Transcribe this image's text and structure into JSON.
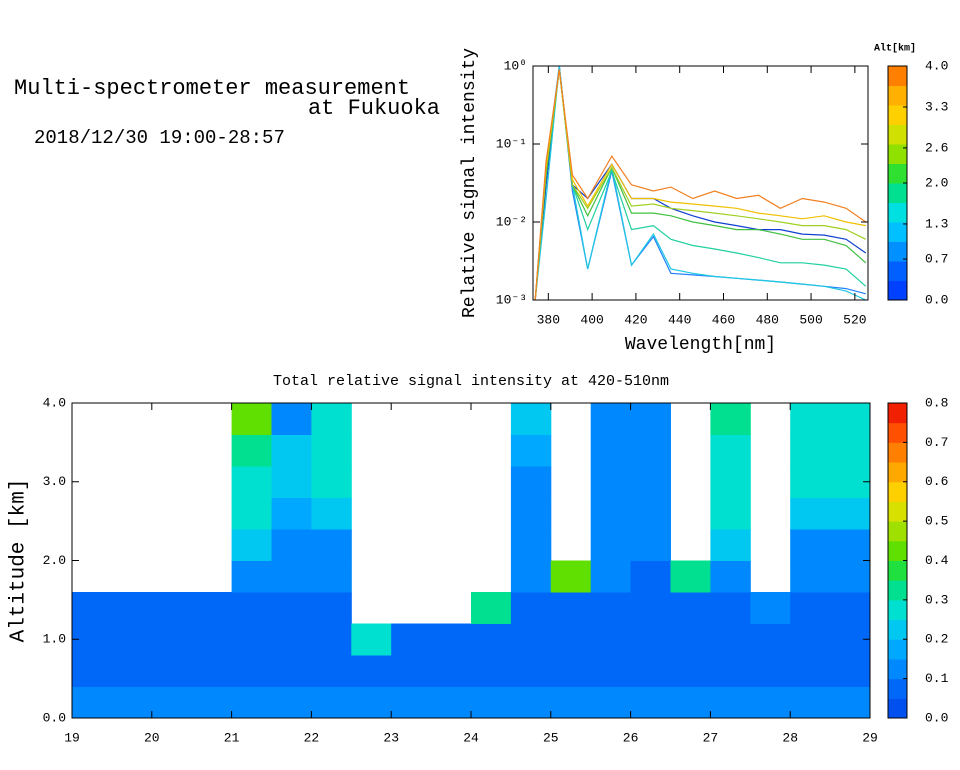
{
  "header": {
    "title": [
      "Multi-spectrometer measurement",
      "at Fukuoka"
    ],
    "datetime": "2018/12/30 19:00-28:57"
  },
  "chart_data": [
    {
      "type": "line",
      "ylabel": "Relative signal intensity",
      "xlabel": "Wavelength[nm]",
      "ylog": true,
      "x": [
        374,
        379,
        385,
        391,
        398,
        409,
        418,
        428,
        436,
        446,
        456,
        466,
        476,
        486,
        496,
        506,
        516,
        525
      ],
      "xlim": [
        373,
        526
      ],
      "xticks": [
        380,
        400,
        420,
        440,
        460,
        480,
        500,
        520
      ],
      "ylim": [
        0.001,
        1
      ],
      "yticks": [
        {
          "value": 0.001,
          "label": "10⁻³"
        },
        {
          "value": 0.01,
          "label": "10⁻²"
        },
        {
          "value": 0.1,
          "label": "10⁻¹"
        },
        {
          "value": 1,
          "label": "10⁰"
        }
      ],
      "series": [
        {
          "color": "#1040d0",
          "values": [
            0.001,
            0.03,
            1,
            0.03,
            0.02,
            0.055,
            0.02,
            0.02,
            0.015,
            0.012,
            0.01,
            0.009,
            0.008,
            0.008,
            0.007,
            0.0068,
            0.006,
            0.004
          ]
        },
        {
          "color": "#2080ff",
          "values": [
            0.001,
            0.05,
            1,
            0.025,
            0.0025,
            0.045,
            0.0028,
            0.0065,
            0.0022,
            0.0021,
            0.002,
            0.0019,
            0.0018,
            0.0017,
            0.0016,
            0.0015,
            0.0014,
            0.0012
          ]
        },
        {
          "color": "#20c8e0",
          "values": [
            0.001,
            0.02,
            1,
            0.03,
            0.0025,
            0.05,
            0.0028,
            0.007,
            0.0025,
            0.0022,
            0.002,
            0.0019,
            0.0018,
            0.0017,
            0.0016,
            0.0015,
            0.0013,
            0.001
          ]
        },
        {
          "color": "#20d0a0",
          "values": [
            0.001,
            0.04,
            0.9,
            0.03,
            0.008,
            0.045,
            0.008,
            0.009,
            0.006,
            0.005,
            0.0045,
            0.004,
            0.0035,
            0.003,
            0.003,
            0.0028,
            0.0025,
            0.0015
          ]
        },
        {
          "color": "#40c040",
          "values": [
            0.001,
            0.04,
            0.9,
            0.03,
            0.012,
            0.05,
            0.013,
            0.013,
            0.012,
            0.01,
            0.009,
            0.008,
            0.008,
            0.007,
            0.006,
            0.006,
            0.005,
            0.003
          ]
        },
        {
          "color": "#a0d020",
          "values": [
            0.001,
            0.05,
            0.9,
            0.03,
            0.015,
            0.05,
            0.016,
            0.017,
            0.015,
            0.014,
            0.013,
            0.012,
            0.011,
            0.01,
            0.009,
            0.009,
            0.008,
            0.006
          ]
        },
        {
          "color": "#f0c000",
          "values": [
            0.001,
            0.05,
            0.9,
            0.035,
            0.016,
            0.055,
            0.02,
            0.02,
            0.018,
            0.017,
            0.016,
            0.015,
            0.013,
            0.012,
            0.011,
            0.012,
            0.01,
            0.009
          ]
        },
        {
          "color": "#f08020",
          "values": [
            0.001,
            0.06,
            0.9,
            0.04,
            0.02,
            0.07,
            0.03,
            0.025,
            0.028,
            0.02,
            0.025,
            0.02,
            0.022,
            0.015,
            0.02,
            0.018,
            0.015,
            0.01
          ]
        }
      ],
      "colorbar": {
        "title": "Alt[km]",
        "lim": [
          0,
          4
        ],
        "ticks": [
          {
            "value": 0,
            "label": "0.0"
          },
          0.7,
          1.3,
          {
            "value": 2,
            "label": "2.0"
          },
          2.6,
          3.3,
          {
            "value": 4,
            "label": "4.0"
          }
        ],
        "colors": [
          "#0040ff",
          "#0060ff",
          "#0090ff",
          "#00c0ff",
          "#00e0e0",
          "#00e090",
          "#30e030",
          "#90e000",
          "#d0e000",
          "#ffd000",
          "#ffb000",
          "#ff8000"
        ]
      }
    },
    {
      "type": "heatmap",
      "title": "Total relative signal intensity at 420-510nm",
      "ylabel": "Altitude [km]",
      "x": [
        19.25,
        19.75,
        20.25,
        20.75,
        21.25,
        21.75,
        22.25,
        22.75,
        23.25,
        23.75,
        24.25,
        24.75,
        25.25,
        25.75,
        26.25,
        26.75,
        27.25,
        27.75,
        28.25,
        28.75
      ],
      "y": [
        0.2,
        0.6,
        1.0,
        1.4,
        1.8,
        2.2,
        2.6,
        3.0,
        3.4,
        3.8
      ],
      "z": [
        [
          0.1,
          0.1,
          0.1,
          0.1,
          0.1,
          0.1,
          0.1,
          0.1,
          0.1,
          0.1,
          0.1,
          0.1,
          0.1,
          0.1,
          0.1,
          0.1,
          0.1,
          0.1,
          0.1,
          0.1
        ],
        [
          0.05,
          0.05,
          0.05,
          0.05,
          0.05,
          0.05,
          0.05,
          0.05,
          0.05,
          0.05,
          0.05,
          0.05,
          0.05,
          0.05,
          0.05,
          0.05,
          0.05,
          0.05,
          0.05,
          0.05
        ],
        [
          0.06,
          0.06,
          0.06,
          0.06,
          0.06,
          0.06,
          0.06,
          0.3,
          0.06,
          0.06,
          0.06,
          0.06,
          0.06,
          0.06,
          0.06,
          0.06,
          0.06,
          0.06,
          0.06,
          0.06
        ],
        [
          0.07,
          0.07,
          0.07,
          0.07,
          0.07,
          0.07,
          0.07,
          null,
          null,
          null,
          0.35,
          0.07,
          0.07,
          0.07,
          0.07,
          0.07,
          0.07,
          0.1,
          0.07,
          0.07
        ],
        [
          null,
          null,
          null,
          null,
          0.1,
          0.1,
          0.1,
          null,
          null,
          null,
          null,
          0.1,
          0.4,
          0.1,
          0.08,
          0.35,
          0.12,
          null,
          0.1,
          0.12
        ],
        [
          null,
          null,
          null,
          null,
          0.2,
          0.15,
          0.15,
          null,
          null,
          null,
          null,
          0.12,
          null,
          0.1,
          0.1,
          null,
          0.2,
          null,
          0.15,
          0.15
        ],
        [
          null,
          null,
          null,
          null,
          0.25,
          0.18,
          0.2,
          null,
          null,
          null,
          null,
          0.15,
          null,
          0.12,
          0.1,
          null,
          0.25,
          null,
          0.2,
          0.2
        ],
        [
          null,
          null,
          null,
          null,
          0.3,
          0.2,
          0.25,
          null,
          null,
          null,
          null,
          0.15,
          null,
          0.12,
          0.12,
          null,
          0.3,
          null,
          0.25,
          0.25
        ],
        [
          null,
          null,
          null,
          null,
          0.35,
          0.2,
          0.3,
          null,
          null,
          null,
          null,
          0.18,
          null,
          0.15,
          0.12,
          null,
          0.3,
          null,
          0.3,
          0.3
        ],
        [
          null,
          null,
          null,
          null,
          0.4,
          0.15,
          0.3,
          null,
          null,
          null,
          null,
          0.2,
          null,
          0.12,
          0.1,
          null,
          0.35,
          null,
          0.3,
          0.3
        ]
      ],
      "xlim": [
        19,
        29
      ],
      "xticks": [
        19,
        20,
        21,
        22,
        23,
        24,
        25,
        26,
        27,
        28,
        29
      ],
      "ylim": [
        0,
        4
      ],
      "yticks": [
        {
          "value": 0,
          "label": "0.0"
        },
        {
          "value": 1,
          "label": "1.0"
        },
        {
          "value": 2,
          "label": "2.0"
        },
        {
          "value": 3,
          "label": "3.0"
        },
        {
          "value": 4,
          "label": "4.0"
        }
      ],
      "colorbar": {
        "lim": [
          0,
          0.8
        ],
        "ticks": [
          {
            "value": 0,
            "label": "0.0"
          },
          0.1,
          0.2,
          0.3,
          0.4,
          0.5,
          0.6,
          0.7,
          0.8
        ],
        "colors": [
          "#0050f0",
          "#0068f8",
          "#0088ff",
          "#00a8ff",
          "#00c8f0",
          "#00e0d0",
          "#00e090",
          "#20e040",
          "#60e000",
          "#a0e000",
          "#d8e000",
          "#ffd000",
          "#ffa800",
          "#ff8000",
          "#ff5000",
          "#f02000"
        ]
      }
    }
  ]
}
